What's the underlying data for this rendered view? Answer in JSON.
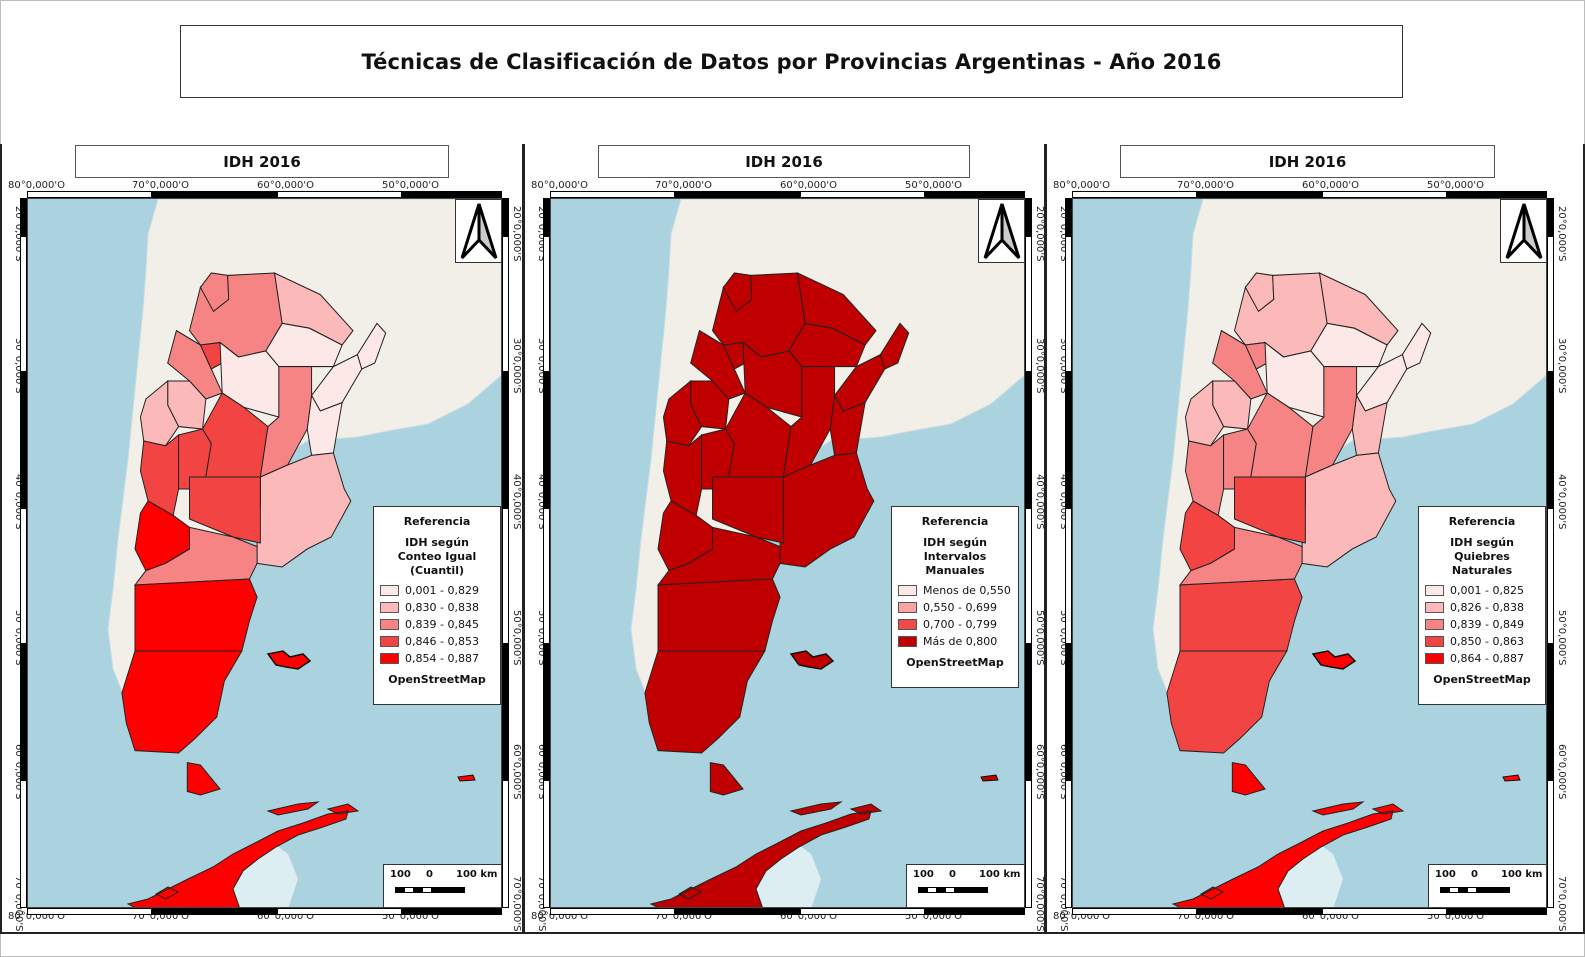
{
  "title": "Técnicas de Clasificación de Datos por Provincias Argentinas - Año 2016",
  "colors": {
    "ocean": "#aad3df",
    "land": "#f2efe9",
    "frame": "#222222"
  },
  "panels": [
    {
      "title": "IDH 2016",
      "legend": {
        "heading": "Referencia",
        "subtitle_line1": "IDH según",
        "subtitle_line2": "Conteo Igual (Cuantil)",
        "classes": [
          {
            "label": "0,001 - 0,829",
            "color": "#fde8e8"
          },
          {
            "label": "0,830 - 0,838",
            "color": "#fbb9b9"
          },
          {
            "label": "0,839 - 0,845",
            "color": "#f78484"
          },
          {
            "label": "0,846 - 0,853",
            "color": "#f34444"
          },
          {
            "label": "0,854 - 0,887",
            "color": "#ff0000"
          }
        ],
        "source": "OpenStreetMap"
      },
      "scalebar": {
        "left": "100",
        "mid": "0",
        "right": "100 km"
      },
      "lon_labels": [
        "80°0,000'O",
        "70°0,000'O",
        "60°0,000'O",
        "50°0,000'O"
      ],
      "lat_labels": [
        "20°0,000'S",
        "30°0,000'S",
        "40°0,000'S",
        "50°0,000'S",
        "60°0,000'S",
        "70°0,000'S"
      ]
    },
    {
      "title": "IDH 2016",
      "legend": {
        "heading": "Referencia",
        "subtitle_line1": "IDH según",
        "subtitle_line2": "Intervalos Manuales",
        "classes": [
          {
            "label": "Menos de 0,550",
            "color": "#fde8e8"
          },
          {
            "label": "0,550 - 0,699",
            "color": "#f9a3a3"
          },
          {
            "label": "0,700 - 0,799",
            "color": "#f14848"
          },
          {
            "label": "Más de 0,800",
            "color": "#c00000"
          }
        ],
        "source": "OpenStreetMap"
      },
      "scalebar": {
        "left": "100",
        "mid": "0",
        "right": "100 km"
      },
      "lon_labels": [
        "80°0,000'O",
        "70°0,000'O",
        "60°0,000'O",
        "50°0,000'O"
      ],
      "lat_labels": [
        "20°0,000'S",
        "30°0,000'S",
        "40°0,000'S",
        "50°0,000'S",
        "60°0,000'S",
        "70°0,000'S"
      ]
    },
    {
      "title": "IDH 2016",
      "legend": {
        "heading": "Referencia",
        "subtitle_line1": "IDH según",
        "subtitle_line2": "Quiebres Naturales",
        "classes": [
          {
            "label": "0,001 - 0,825",
            "color": "#fde8e8"
          },
          {
            "label": "0,826 - 0,838",
            "color": "#fbb9b9"
          },
          {
            "label": "0,839 - 0,849",
            "color": "#f78484"
          },
          {
            "label": "0,850 - 0,863",
            "color": "#f34444"
          },
          {
            "label": "0,864 - 0,887",
            "color": "#ff0000"
          }
        ],
        "source": "OpenStreetMap"
      },
      "scalebar": {
        "left": "100",
        "mid": "0",
        "right": "100 km"
      },
      "lon_labels": [
        "80°0,000'O",
        "70°0,000'O",
        "60°0,000'O",
        "50°0,000'O"
      ],
      "lat_labels": [
        "20°0,000'S",
        "30°0,000'S",
        "40°0,000'S",
        "50°0,000'S",
        "60°0,000'S",
        "70°0,000'S"
      ]
    }
  ]
}
